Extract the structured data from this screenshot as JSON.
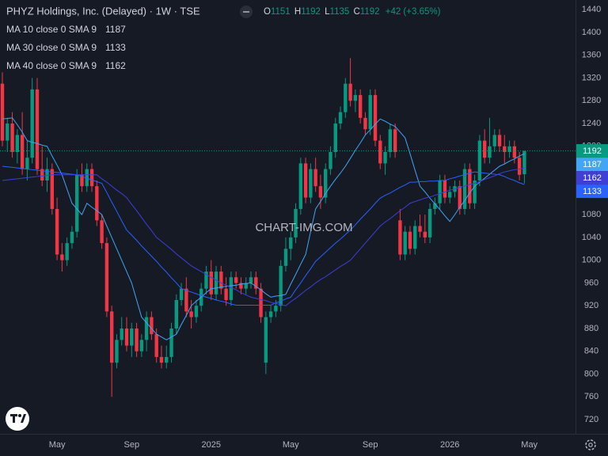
{
  "chart_data": {
    "type": "candlestick",
    "title": "PHYZ Holdings, Inc. (Delayed) · 1W · TSE",
    "ohlc_labels": [
      "O",
      "H",
      "L",
      "C"
    ],
    "change": "+42 (+3.65%)",
    "watermark": "CHART-IMG.COM",
    "up_color": "#089981",
    "down_color": "#f23645",
    "categories": [
      null,
      null,
      null,
      null,
      null,
      null,
      null,
      null,
      null,
      null,
      null,
      "May",
      null,
      null,
      null,
      null,
      null,
      null,
      null,
      null,
      null,
      null,
      null,
      null,
      null,
      null,
      "Sep",
      null,
      null,
      null,
      null,
      null,
      null,
      null,
      null,
      null,
      null,
      null,
      null,
      null,
      null,
      null,
      "2025",
      null,
      null,
      null,
      null,
      null,
      null,
      null,
      null,
      null,
      null,
      null,
      null,
      null,
      null,
      null,
      "May",
      null,
      null,
      null,
      null,
      null,
      null,
      null,
      null,
      null,
      null,
      null,
      null,
      null,
      null,
      null,
      "Sep",
      null,
      null,
      null,
      null,
      null,
      null,
      null,
      null,
      null,
      null,
      null,
      null,
      null,
      null,
      null,
      "2026",
      null,
      null,
      null,
      null,
      null,
      null,
      null,
      null,
      null,
      null,
      null,
      null,
      null,
      null,
      null,
      "May"
    ],
    "open": [
      1310,
      1210,
      1240,
      1190,
      1220,
      1160,
      1180,
      1300,
      1160,
      1140,
      1160,
      1090,
      1010,
      1000,
      1030,
      1050,
      1150,
      1130,
      1160,
      1130,
      1070,
      1030,
      910,
      820,
      860,
      880,
      850,
      880,
      840,
      860,
      900,
      870,
      830,
      820,
      830,
      880,
      930,
      950,
      910,
      900,
      920,
      950,
      980,
      940,
      980,
      950,
      930,
      970,
      960,
      950,
      960,
      970,
      950,
      820,
      900,
      910,
      920,
      990,
      1020,
      1040,
      1090,
      1170,
      1110,
      1160,
      1130,
      1110,
      1160,
      1190,
      1240,
      1260,
      1310,
      1280,
      1290,
      1250,
      1230,
      1290,
      1210,
      1170,
      1190,
      1230,
      1070,
      1010,
      1050,
      1020,
      1060,
      1050,
      1040,
      1090,
      1100,
      1140,
      1110,
      1120,
      1130,
      1090,
      1160,
      1100,
      1140,
      1210,
      1180,
      1200,
      1220,
      1200,
      1190,
      1200,
      1180,
      1151,
      null
    ],
    "high": [
      1330,
      1250,
      1260,
      1230,
      1260,
      1210,
      1320,
      1320,
      1200,
      1180,
      1170,
      1110,
      1030,
      1040,
      1060,
      1160,
      1170,
      1170,
      1170,
      1140,
      1080,
      1040,
      920,
      870,
      900,
      900,
      890,
      890,
      870,
      910,
      910,
      880,
      850,
      850,
      890,
      940,
      960,
      970,
      930,
      930,
      960,
      990,
      1000,
      990,
      990,
      970,
      980,
      980,
      970,
      970,
      980,
      980,
      960,
      910,
      920,
      930,
      1000,
      1040,
      1050,
      1100,
      1180,
      1180,
      1170,
      1180,
      1150,
      1170,
      1200,
      1250,
      1270,
      1320,
      1355,
      1300,
      1300,
      1260,
      1300,
      1300,
      1220,
      1200,
      1240,
      1240,
      1090,
      1060,
      1060,
      1070,
      1080,
      1080,
      1100,
      1110,
      1150,
      1150,
      1130,
      1140,
      1140,
      1170,
      1170,
      1150,
      1220,
      1230,
      1250,
      1230,
      1230,
      1220,
      1210,
      1210,
      1190,
      1192,
      null
    ],
    "low": [
      1200,
      1190,
      1180,
      1170,
      1150,
      1140,
      1170,
      1150,
      1130,
      1120,
      1080,
      1000,
      980,
      990,
      1020,
      1040,
      1120,
      1120,
      1120,
      1060,
      1020,
      900,
      760,
      810,
      850,
      840,
      830,
      830,
      830,
      840,
      860,
      820,
      810,
      810,
      820,
      870,
      920,
      900,
      880,
      890,
      910,
      940,
      930,
      930,
      940,
      920,
      920,
      950,
      940,
      940,
      950,
      940,
      890,
      800,
      890,
      900,
      910,
      980,
      1000,
      1030,
      1080,
      1100,
      1100,
      1120,
      1090,
      1100,
      1150,
      1180,
      1230,
      1250,
      1270,
      1260,
      1240,
      1220,
      1220,
      1200,
      1160,
      1150,
      1180,
      1180,
      1000,
      1000,
      1010,
      1010,
      1040,
      1030,
      1030,
      1080,
      1090,
      1100,
      1100,
      1110,
      1080,
      1080,
      1090,
      1090,
      1130,
      1170,
      1170,
      1190,
      1190,
      1170,
      1180,
      1170,
      1140,
      1135,
      null
    ],
    "close": [
      1210,
      1240,
      1190,
      1220,
      1160,
      1180,
      1300,
      1160,
      1140,
      1160,
      1090,
      1010,
      1000,
      1030,
      1050,
      1150,
      1130,
      1160,
      1130,
      1070,
      1030,
      910,
      820,
      860,
      880,
      850,
      880,
      840,
      860,
      900,
      870,
      830,
      820,
      830,
      880,
      930,
      950,
      910,
      900,
      920,
      950,
      980,
      940,
      980,
      950,
      930,
      970,
      960,
      950,
      960,
      970,
      950,
      900,
      900,
      910,
      920,
      990,
      1020,
      1040,
      1090,
      1170,
      1110,
      1160,
      1130,
      1110,
      1160,
      1190,
      1240,
      1260,
      1310,
      1280,
      1290,
      1250,
      1230,
      1290,
      1210,
      1170,
      1190,
      1230,
      1190,
      1010,
      1050,
      1020,
      1060,
      1050,
      1040,
      1090,
      1100,
      1140,
      1110,
      1120,
      1130,
      1090,
      1160,
      1100,
      1140,
      1210,
      1180,
      1200,
      1220,
      1200,
      1190,
      1200,
      1180,
      1150,
      1192,
      null
    ],
    "series": [
      {
        "name": "MA 10 close 0 SMA 9",
        "color": "#42a5f5",
        "values": [
          1248,
          1249,
          1250,
          1238,
          1225,
          1210,
          1207,
          1205,
          1202,
          1200,
          1183,
          1167,
          1150,
          1125,
          1100,
          1090,
          1080,
          1100,
          1093,
          1087,
          1080,
          1060,
          1040,
          1020,
          1000,
          980,
          960,
          930,
          900,
          890,
          880,
          870,
          865,
          860,
          865,
          870,
          887,
          903,
          920,
          928,
          935,
          943,
          950,
          951,
          953,
          954,
          955,
          956,
          958,
          959,
          960,
          954,
          948,
          941,
          935,
          937,
          938,
          940,
          958,
          975,
          993,
          1010,
          1050,
          1090,
          1103,
          1117,
          1130,
          1142,
          1153,
          1165,
          1179,
          1193,
          1206,
          1220,
          1229,
          1239,
          1248,
          1244,
          1239,
          1235,
          1225,
          1215,
          1187,
          1158,
          1130,
          1120,
          1109,
          1099,
          1089,
          1078,
          1068,
          1080,
          1093,
          1105,
          1118,
          1130,
          1137,
          1144,
          1151,
          1158,
          1165,
          1169,
          1174,
          1178,
          1183,
          1187,
          null
        ]
      },
      {
        "name": "MA 30 close 0 SMA 9",
        "color": "#2962ff",
        "values": [
          1165,
          1164,
          1163,
          1162,
          1161,
          1160,
          1159,
          1158,
          1157,
          1156,
          1155,
          1154,
          1153,
          1152,
          1151,
          1150,
          1147,
          1144,
          1141,
          1138,
          1135,
          1119,
          1102,
          1086,
          1069,
          1053,
          1044,
          1035,
          1025,
          1016,
          1007,
          998,
          988,
          979,
          969,
          960,
          950,
          947,
          944,
          941,
          938,
          935,
          933,
          930,
          928,
          926,
          923,
          921,
          921,
          921,
          921,
          921,
          921,
          921,
          921,
          925,
          928,
          932,
          935,
          948,
          960,
          973,
          985,
          998,
          1006,
          1014,
          1022,
          1030,
          1037,
          1045,
          1053,
          1062,
          1072,
          1081,
          1090,
          1100,
          1109,
          1114,
          1118,
          1123,
          1128,
          1132,
          1137,
          1137,
          1138,
          1138,
          1139,
          1139,
          1140,
          1140,
          1143,
          1145,
          1148,
          1150,
          1153,
          1155,
          1154,
          1153,
          1152,
          1151,
          1150,
          1147,
          1143,
          1140,
          1136,
          1133,
          null
        ]
      },
      {
        "name": "MA 40 close 0 SMA 9",
        "color": "#3f3fd6",
        "values": [
          1140,
          1141,
          1142,
          1143,
          1144,
          1145,
          1146,
          1147,
          1148,
          1149,
          1150,
          1150,
          1150,
          1150,
          1150,
          1150,
          1150,
          1150,
          1150,
          1150,
          1143,
          1137,
          1130,
          1123,
          1117,
          1110,
          1098,
          1087,
          1075,
          1063,
          1052,
          1040,
          1033,
          1026,
          1019,
          1011,
          1004,
          997,
          990,
          985,
          980,
          975,
          970,
          965,
          960,
          956,
          952,
          948,
          943,
          939,
          935,
          933,
          931,
          929,
          926,
          924,
          922,
          920,
          927,
          933,
          940,
          947,
          953,
          960,
          966,
          971,
          977,
          983,
          989,
          994,
          1000,
          1010,
          1020,
          1030,
          1040,
          1050,
          1060,
          1067,
          1073,
          1080,
          1087,
          1093,
          1100,
          1103,
          1106,
          1109,
          1111,
          1114,
          1117,
          1120,
          1123,
          1125,
          1128,
          1130,
          1133,
          1135,
          1138,
          1142,
          1145,
          1148,
          1152,
          1155,
          1157,
          1159,
          1160,
          1162,
          null
        ]
      }
    ],
    "ylim": [
      695,
      1457
    ],
    "yticks": [
      720,
      760,
      800,
      840,
      880,
      920,
      960,
      1000,
      1040,
      1080,
      1120,
      1160,
      1200,
      1240,
      1280,
      1320,
      1360,
      1400,
      1440
    ],
    "grid": false
  }
}
